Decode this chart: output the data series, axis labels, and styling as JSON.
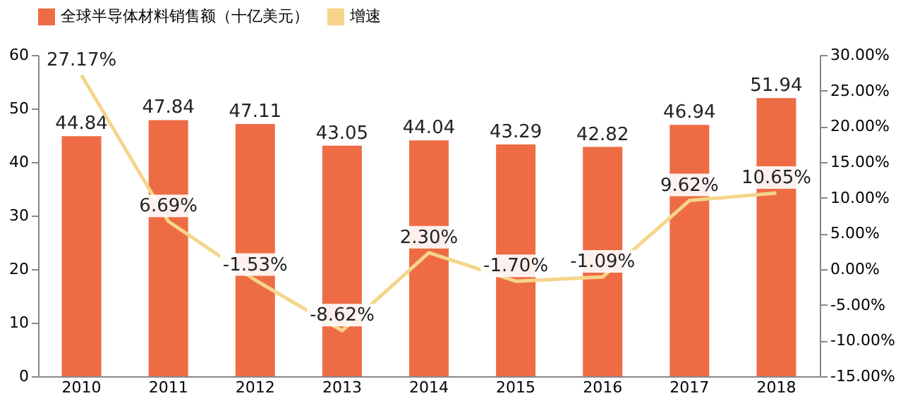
{
  "chart_data": {
    "type": "bar",
    "categories": [
      "2010",
      "2011",
      "2012",
      "2013",
      "2014",
      "2015",
      "2016",
      "2017",
      "2018"
    ],
    "series": [
      {
        "name": "全球半导体材料销售额（十亿美元）",
        "color": "#ee6c44",
        "values": [
          44.84,
          47.84,
          47.11,
          43.05,
          44.04,
          43.29,
          42.82,
          46.94,
          51.94
        ],
        "value_labels": [
          "44.84",
          "47.84",
          "47.11",
          "43.05",
          "44.04",
          "43.29",
          "42.82",
          "46.94",
          "51.94"
        ]
      },
      {
        "name": "增速",
        "type": "line",
        "axis": "y2",
        "color": "#f5d58a",
        "values": [
          27.17,
          6.69,
          -1.53,
          -8.62,
          2.3,
          -1.7,
          -1.09,
          9.62,
          10.65
        ],
        "value_labels": [
          "27.17%",
          "6.69%",
          "-1.53%",
          "-8.62%",
          "2.30%",
          "-1.70%",
          "-1.09%",
          "9.62%",
          "10.65%"
        ]
      }
    ],
    "ylim": [
      0,
      60
    ],
    "yticks": [
      0,
      10,
      20,
      30,
      40,
      50,
      60
    ],
    "y2lim": [
      -15,
      30
    ],
    "y2ticks": [
      {
        "value": -15,
        "label": "-15.00%"
      },
      {
        "value": -10,
        "label": "-10.00%"
      },
      {
        "value": -5,
        "label": "-5.00%"
      },
      {
        "value": 0,
        "label": "0.00%"
      },
      {
        "value": 5,
        "label": "5.00%"
      },
      {
        "value": 10,
        "label": "10.00%"
      },
      {
        "value": 15,
        "label": "15.00%"
      },
      {
        "value": 20,
        "label": "20.00%"
      },
      {
        "value": 25,
        "label": "25.00%"
      },
      {
        "value": 30,
        "label": "30.00%"
      }
    ],
    "legend": "top",
    "grid": false,
    "marker": "none",
    "line_style": "solid"
  }
}
